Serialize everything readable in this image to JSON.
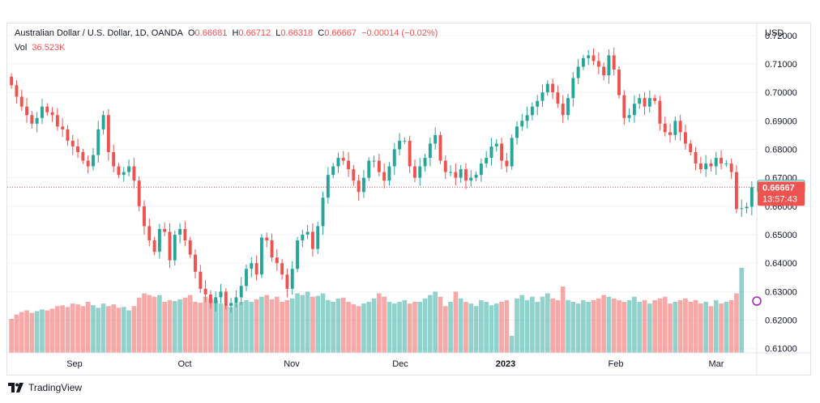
{
  "chart_data": {
    "type": "candlestick",
    "title": "Australian Dollar / U.S. Dollar, 1D, OANDA",
    "ohlc_legend": {
      "o_label": "O",
      "o": "0.66681",
      "h_label": "H",
      "h": "0.66712",
      "l_label": "L",
      "l": "0.66318",
      "c_label": "C",
      "c": "0.66667",
      "change": "−0.00014 (−0.02%)"
    },
    "volume_legend": {
      "label": "Vol",
      "value": "36.523K"
    },
    "y_axis": {
      "unit": "USD",
      "ticks": [
        "0.72000",
        "0.71000",
        "0.70000",
        "0.69000",
        "0.68000",
        "0.67000",
        "0.66000",
        "0.65000",
        "0.64000",
        "0.63000",
        "0.62000",
        "0.61000"
      ],
      "ylim": [
        0.6085,
        0.7205
      ]
    },
    "x_axis": {
      "labels": [
        "Sep",
        "Oct",
        "Nov",
        "Dec",
        "2023",
        "Feb",
        "Mar"
      ]
    },
    "open_price_label": "0.66681",
    "last_price_label": "0.66667",
    "countdown": "13:57:43",
    "close_series": [
      0.7025,
      0.6985,
      0.695,
      0.692,
      0.689,
      0.691,
      0.695,
      0.693,
      0.692,
      0.688,
      0.687,
      0.683,
      0.681,
      0.679,
      0.676,
      0.674,
      0.678,
      0.687,
      0.692,
      0.679,
      0.674,
      0.671,
      0.672,
      0.674,
      0.669,
      0.66,
      0.653,
      0.648,
      0.644,
      0.652,
      0.651,
      0.641,
      0.65,
      0.652,
      0.648,
      0.643,
      0.637,
      0.631,
      0.629,
      0.626,
      0.628,
      0.63,
      0.625,
      0.626,
      0.628,
      0.632,
      0.638,
      0.64,
      0.636,
      0.649,
      0.648,
      0.642,
      0.64,
      0.636,
      0.631,
      0.638,
      0.648,
      0.65,
      0.651,
      0.645,
      0.653,
      0.663,
      0.671,
      0.674,
      0.677,
      0.676,
      0.673,
      0.669,
      0.665,
      0.67,
      0.676,
      0.676,
      0.672,
      0.669,
      0.674,
      0.68,
      0.683,
      0.683,
      0.674,
      0.67,
      0.674,
      0.677,
      0.682,
      0.685,
      0.676,
      0.672,
      0.672,
      0.67,
      0.673,
      0.669,
      0.67,
      0.671,
      0.675,
      0.677,
      0.681,
      0.682,
      0.676,
      0.674,
      0.684,
      0.688,
      0.69,
      0.692,
      0.695,
      0.697,
      0.7,
      0.703,
      0.7,
      0.696,
      0.692,
      0.698,
      0.705,
      0.709,
      0.712,
      0.713,
      0.711,
      0.709,
      0.706,
      0.713,
      0.708,
      0.699,
      0.691,
      0.692,
      0.696,
      0.698,
      0.695,
      0.698,
      0.697,
      0.689,
      0.686,
      0.685,
      0.69,
      0.686,
      0.682,
      0.679,
      0.675,
      0.673,
      0.675,
      0.674,
      0.677,
      0.675,
      0.675,
      0.672,
      0.659,
      0.6593,
      0.6598,
      0.6667
    ],
    "volume_series": [
      0.4,
      0.45,
      0.48,
      0.5,
      0.47,
      0.49,
      0.51,
      0.5,
      0.52,
      0.55,
      0.56,
      0.54,
      0.58,
      0.57,
      0.55,
      0.6,
      0.56,
      0.53,
      0.58,
      0.55,
      0.57,
      0.53,
      0.54,
      0.5,
      0.55,
      0.65,
      0.7,
      0.68,
      0.66,
      0.68,
      0.6,
      0.62,
      0.61,
      0.63,
      0.65,
      0.68,
      0.6,
      0.59,
      0.66,
      0.64,
      0.62,
      0.58,
      0.55,
      0.54,
      0.58,
      0.6,
      0.62,
      0.6,
      0.63,
      0.66,
      0.68,
      0.63,
      0.66,
      0.6,
      0.62,
      0.64,
      0.7,
      0.68,
      0.72,
      0.66,
      0.67,
      0.7,
      0.62,
      0.6,
      0.64,
      0.65,
      0.6,
      0.57,
      0.55,
      0.58,
      0.6,
      0.64,
      0.7,
      0.66,
      0.6,
      0.58,
      0.6,
      0.62,
      0.58,
      0.6,
      0.6,
      0.64,
      0.68,
      0.72,
      0.66,
      0.55,
      0.6,
      0.72,
      0.64,
      0.6,
      0.58,
      0.55,
      0.62,
      0.6,
      0.56,
      0.58,
      0.6,
      0.62,
      0.2,
      0.64,
      0.68,
      0.62,
      0.66,
      0.6,
      0.66,
      0.7,
      0.64,
      0.62,
      0.78,
      0.62,
      0.6,
      0.58,
      0.62,
      0.6,
      0.62,
      0.64,
      0.68,
      0.66,
      0.64,
      0.62,
      0.6,
      0.62,
      0.66,
      0.6,
      0.62,
      0.58,
      0.62,
      0.64,
      0.66,
      0.58,
      0.6,
      0.62,
      0.64,
      0.6,
      0.62,
      0.58,
      0.6,
      0.55,
      0.62,
      0.58,
      0.6,
      0.62,
      0.7,
      1.0
    ]
  }
}
